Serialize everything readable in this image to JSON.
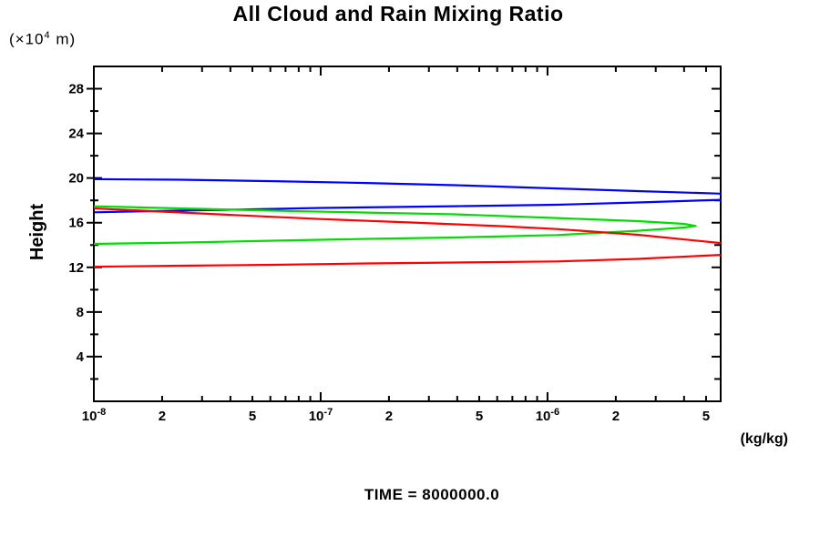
{
  "page": {
    "title": "All Cloud and Rain Mixing Ratio",
    "y_unit": {
      "prefix": "(×10",
      "exp": "4",
      "suffix": " m)"
    },
    "ylabel": "Height",
    "xlabel": "(kg/kg)",
    "time_label": "TIME = 8000000.0"
  },
  "chart_data": {
    "type": "line",
    "title": "All Cloud and Rain Mixing Ratio",
    "xlabel": "(kg/kg)",
    "ylabel": "Height",
    "y_unit": "(x10^4 m)",
    "x_scale": "log",
    "xlim": [
      1e-08,
      5.8e-06
    ],
    "ylim": [
      0,
      30
    ],
    "grid": false,
    "legend": "none",
    "annotation": "TIME = 8000000.0",
    "y_major_ticks": [
      4,
      8,
      12,
      16,
      20,
      24,
      28
    ],
    "y_minor_ticks": [
      2,
      6,
      10,
      14,
      18,
      22,
      26
    ],
    "x_ticks": [
      {
        "v": 1e-08,
        "label": "10",
        "exp": "-8"
      },
      {
        "v": 2e-08,
        "label": "2"
      },
      {
        "v": 5e-08,
        "label": "5"
      },
      {
        "v": 1e-07,
        "label": "10",
        "exp": "-7"
      },
      {
        "v": 2e-07,
        "label": "2"
      },
      {
        "v": 5e-07,
        "label": "5"
      },
      {
        "v": 1e-06,
        "label": "10",
        "exp": "-6"
      },
      {
        "v": 2e-06,
        "label": "2"
      },
      {
        "v": 5e-06,
        "label": "5"
      }
    ],
    "series": [
      {
        "name": "blue-profile",
        "color": "#0000ff",
        "branches": [
          [
            [
              1e-08,
              19.9
            ],
            [
              2.4e-08,
              19.85
            ],
            [
              6.2e-08,
              19.72
            ],
            [
              1.6e-07,
              19.56
            ],
            [
              3.9e-07,
              19.36
            ],
            [
              1.1e-06,
              19.07
            ],
            [
              2.5e-06,
              18.83
            ],
            [
              5.8e-06,
              18.6
            ]
          ],
          [
            [
              1e-08,
              16.93
            ],
            [
              1.8e-08,
              17.04
            ],
            [
              3.9e-08,
              17.16
            ],
            [
              1e-07,
              17.32
            ],
            [
              3.9e-07,
              17.48
            ],
            [
              1.1e-06,
              17.61
            ],
            [
              2.5e-06,
              17.81
            ],
            [
              5.8e-06,
              18.05
            ]
          ]
        ]
      },
      {
        "name": "green-profile",
        "color": "#00dd00",
        "branches": [
          [
            [
              1e-08,
              17.47
            ],
            [
              2.4e-08,
              17.28
            ],
            [
              6.2e-08,
              17.08
            ],
            [
              1.6e-07,
              16.91
            ],
            [
              3.9e-07,
              16.75
            ],
            [
              1.1e-06,
              16.42
            ],
            [
              2.5e-06,
              16.14
            ],
            [
              4e-06,
              15.9
            ],
            [
              4.5e-06,
              15.71
            ],
            [
              4e-06,
              15.57
            ],
            [
              2.5e-06,
              15.28
            ],
            [
              1.1e-06,
              14.89
            ],
            [
              3.9e-07,
              14.67
            ],
            [
              1.6e-07,
              14.55
            ],
            [
              6.2e-08,
              14.39
            ],
            [
              2.4e-08,
              14.22
            ],
            [
              1e-08,
              14.1
            ]
          ]
        ]
      },
      {
        "name": "red-profile",
        "color": "#ff0000",
        "branches": [
          [
            [
              1e-08,
              17.28
            ],
            [
              1.8e-08,
              17.04
            ],
            [
              3.9e-08,
              16.71
            ],
            [
              1e-07,
              16.33
            ],
            [
              2.5e-07,
              16.02
            ],
            [
              6.2e-07,
              15.69
            ],
            [
              1.1e-06,
              15.43
            ],
            [
              2.5e-06,
              14.92
            ],
            [
              5.8e-06,
              14.18
            ]
          ],
          [
            [
              1e-08,
              12.06
            ],
            [
              2.4e-08,
              12.15
            ],
            [
              6.2e-08,
              12.23
            ],
            [
              1.6e-07,
              12.35
            ],
            [
              3.9e-07,
              12.43
            ],
            [
              1.1e-06,
              12.53
            ],
            [
              2.5e-06,
              12.76
            ],
            [
              5.8e-06,
              13.12
            ]
          ]
        ]
      }
    ]
  }
}
